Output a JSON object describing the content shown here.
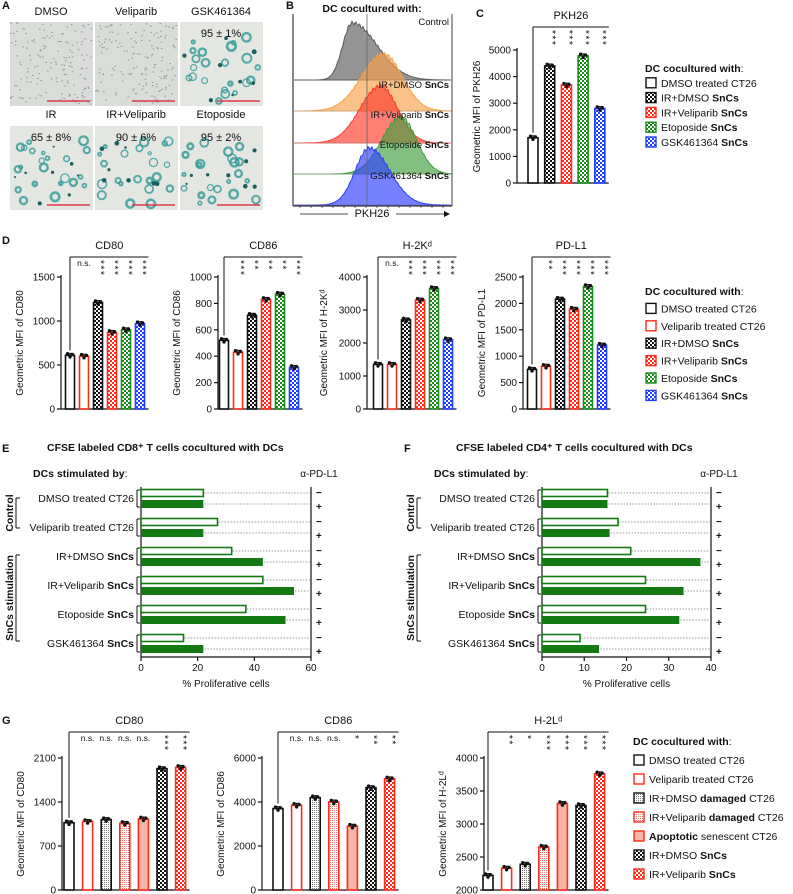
{
  "panel_labels": [
    "A",
    "B",
    "C",
    "D",
    "E",
    "F",
    "G"
  ],
  "colors": {
    "black": "#111111",
    "red": "#ff2a1a",
    "green": "#1c8a1c",
    "blue": "#1f3cff",
    "pink": "#f9b4a8",
    "grey": "#9a9a9a",
    "scale_bar": "#e0364a",
    "stain": "#2f9a96",
    "e_bar": "#137a13"
  },
  "panel_a": {
    "images": [
      {
        "label": "DMSO",
        "percent": "",
        "stained": false
      },
      {
        "label": "Veliparib",
        "percent": "",
        "stained": false
      },
      {
        "label": "GSK461364",
        "percent": "95 ± 1%",
        "stained": true
      },
      {
        "label": "IR",
        "percent": "65 ± 8%",
        "stained": true
      },
      {
        "label": "IR+Veliparib",
        "percent": "90 ± 6%",
        "stained": true
      },
      {
        "label": "Etoposide",
        "percent": "95 ± 2%",
        "stained": true
      }
    ]
  },
  "legend_c": {
    "title": [
      {
        "t": "DC cocultured with",
        "b": true
      },
      {
        "t": ":"
      }
    ],
    "items": [
      {
        "style": "open-black",
        "parts": [
          {
            "t": "DMSO treated CT26"
          }
        ]
      },
      {
        "style": "check-black",
        "parts": [
          {
            "t": "IR+DMSO "
          },
          {
            "t": "SnCs",
            "b": true
          }
        ]
      },
      {
        "style": "check-red",
        "parts": [
          {
            "t": "IR+Veliparib "
          },
          {
            "t": "SnCs",
            "b": true
          }
        ]
      },
      {
        "style": "check-green",
        "parts": [
          {
            "t": "Etoposide "
          },
          {
            "t": "SnCs",
            "b": true
          }
        ]
      },
      {
        "style": "check-blue",
        "parts": [
          {
            "t": "GSK461364 "
          },
          {
            "t": "SnCs",
            "b": true
          }
        ]
      }
    ]
  },
  "legend_d": {
    "title": [
      {
        "t": "DC cocultured with",
        "b": true
      },
      {
        "t": ":"
      }
    ],
    "items": [
      {
        "style": "open-black",
        "parts": [
          {
            "t": "DMSO treated CT26"
          }
        ]
      },
      {
        "style": "open-red",
        "parts": [
          {
            "t": "Veliparib treated CT26"
          }
        ]
      },
      {
        "style": "check-black",
        "parts": [
          {
            "t": "IR+DMSO "
          },
          {
            "t": "SnCs",
            "b": true
          }
        ]
      },
      {
        "style": "check-red",
        "parts": [
          {
            "t": "IR+Veliparib "
          },
          {
            "t": "SnCs",
            "b": true
          }
        ]
      },
      {
        "style": "check-green",
        "parts": [
          {
            "t": "Etoposide "
          },
          {
            "t": "SnCs",
            "b": true
          }
        ]
      },
      {
        "style": "check-blue",
        "parts": [
          {
            "t": "GSK461364 "
          },
          {
            "t": "SnCs",
            "b": true
          }
        ]
      }
    ]
  },
  "legend_g": {
    "title": [
      {
        "t": "DC cocultured with",
        "b": true
      },
      {
        "t": ":"
      }
    ],
    "items": [
      {
        "style": "open-black",
        "parts": [
          {
            "t": "DMSO treated CT26"
          }
        ]
      },
      {
        "style": "open-red",
        "parts": [
          {
            "t": "Veliparib treated CT26"
          }
        ]
      },
      {
        "style": "fine-black",
        "parts": [
          {
            "t": "IR+DMSO "
          },
          {
            "t": "damaged",
            "b": true
          },
          {
            "t": " CT26"
          }
        ]
      },
      {
        "style": "fine-red",
        "parts": [
          {
            "t": "IR+Veliparib "
          },
          {
            "t": "damaged",
            "b": true
          },
          {
            "t": " CT26"
          }
        ]
      },
      {
        "style": "solid-pink",
        "parts": [
          {
            "t": "Apoptotic",
            "b": true
          },
          {
            "t": " senescent CT26"
          }
        ]
      },
      {
        "style": "check-black",
        "parts": [
          {
            "t": "IR+DMSO "
          },
          {
            "t": "SnCs",
            "b": true
          }
        ]
      },
      {
        "style": "check-red",
        "parts": [
          {
            "t": "IR+Veliparib "
          },
          {
            "t": "SnCs",
            "b": true
          }
        ]
      }
    ]
  },
  "chart_data": [
    {
      "id": "B",
      "type": "area",
      "title": "DC cocultured with:",
      "xlabel": "PKH26",
      "series": [
        {
          "parts": [
            {
              "t": "Control"
            }
          ],
          "color": "#5a5a5a",
          "peak": 0.37,
          "sigma_left": 0.06,
          "sigma_right": 0.16
        },
        {
          "parts": [
            {
              "t": "IR+DMSO "
            },
            {
              "t": "SnCs",
              "b": true
            }
          ],
          "color": "#f7a048",
          "peak": 0.57,
          "sigma_left": 0.14,
          "sigma_right": 0.12
        },
        {
          "parts": [
            {
              "t": "IR+Veliparib "
            },
            {
              "t": "SnCs",
              "b": true
            }
          ],
          "color": "#ff3b2b",
          "peak": 0.55,
          "sigma_left": 0.13,
          "sigma_right": 0.11
        },
        {
          "parts": [
            {
              "t": "Etoposide "
            },
            {
              "t": "SnCs",
              "b": true
            }
          ],
          "color": "#3f9e3f",
          "peak": 0.68,
          "sigma_left": 0.12,
          "sigma_right": 0.1
        },
        {
          "parts": [
            {
              "t": "GSK461364 "
            },
            {
              "t": "SnCs",
              "b": true
            }
          ],
          "color": "#2e3cff",
          "peak": 0.48,
          "sigma_left": 0.09,
          "sigma_right": 0.13
        }
      ]
    },
    {
      "id": "C",
      "type": "bar",
      "title": "PKH26",
      "ylabel": "Geometric MFI of PKH26",
      "ylim": [
        0,
        5000
      ],
      "ticks": [
        0,
        1000,
        2000,
        3000,
        4000,
        5000
      ],
      "values": [
        1700,
        4400,
        3680,
        4780,
        2800
      ],
      "styles": [
        "open-black",
        "check-black",
        "check-red",
        "check-green",
        "check-blue"
      ],
      "sig": [
        "",
        "***",
        "***",
        "***",
        "***"
      ]
    },
    {
      "id": "D-CD80",
      "type": "bar",
      "title": "CD80",
      "ylabel": "Geometric MFI of CD80",
      "ylim": [
        0,
        1500
      ],
      "ticks": [
        0,
        500,
        1000,
        1500
      ],
      "values": [
        610,
        600,
        1210,
        870,
        900,
        970
      ],
      "styles": [
        "open-black",
        "open-red",
        "check-black",
        "check-red",
        "check-green",
        "check-blue"
      ],
      "sig": [
        "",
        "n.s.",
        "***",
        "***",
        "***",
        "***"
      ]
    },
    {
      "id": "D-CD86",
      "type": "bar",
      "title": "CD86",
      "ylabel": "Geometric MFI of CD86",
      "ylim": [
        0,
        1000
      ],
      "ticks": [
        0,
        200,
        400,
        600,
        800,
        1000
      ],
      "values": [
        520,
        430,
        710,
        830,
        870,
        315
      ],
      "styles": [
        "open-black",
        "open-red",
        "check-black",
        "check-red",
        "check-green",
        "check-blue"
      ],
      "sig": [
        "",
        "***",
        "**",
        "**",
        "**",
        "***"
      ]
    },
    {
      "id": "D-H2Kd",
      "type": "bar",
      "title": "H-2Kᵈ",
      "ylabel": "Geometric MFI of H-2Kᵈ",
      "ylim": [
        0,
        4000
      ],
      "ticks": [
        0,
        1000,
        2000,
        3000,
        4000
      ],
      "values": [
        1350,
        1350,
        2700,
        3300,
        3650,
        2100
      ],
      "styles": [
        "open-black",
        "open-red",
        "check-black",
        "check-red",
        "check-green",
        "check-blue"
      ],
      "sig": [
        "",
        "n.s.",
        "***",
        "***",
        "***",
        "***"
      ]
    },
    {
      "id": "D-PDL1",
      "type": "bar",
      "title": "PD-L1",
      "ylabel": "Geometric MFI of PD-L1",
      "ylim": [
        0,
        2500
      ],
      "ticks": [
        0,
        500,
        1000,
        1500,
        2000,
        2500
      ],
      "values": [
        750,
        810,
        2080,
        1890,
        2320,
        1210
      ],
      "styles": [
        "open-black",
        "open-red",
        "check-black",
        "check-red",
        "check-green",
        "check-blue"
      ],
      "sig": [
        "",
        "**",
        "***",
        "***",
        "***",
        "***"
      ]
    },
    {
      "id": "E",
      "type": "bar",
      "title": "CFSE labeled CD8⁺ T cells cocultured with DCs",
      "header": [
        {
          "t": "DCs stimulated by",
          "b": true
        },
        {
          "t": ":"
        }
      ],
      "antibody": "α-PD-L1",
      "signs": [
        "−",
        "+"
      ],
      "xlabel": "% Proliferative cells",
      "xlim": [
        0,
        60
      ],
      "ticks": [
        0,
        20,
        40,
        60
      ],
      "groups": [
        "Control",
        "SnCs stimulation"
      ],
      "rows": [
        {
          "parts": [
            {
              "t": "DMSO treated CT26"
            }
          ],
          "minus": 22,
          "plus": 22
        },
        {
          "parts": [
            {
              "t": "Veliparib treated CT26"
            }
          ],
          "minus": 27,
          "plus": 22
        },
        {
          "parts": [
            {
              "t": "IR+DMSO "
            },
            {
              "t": "SnCs",
              "b": true
            }
          ],
          "minus": 32,
          "plus": 43
        },
        {
          "parts": [
            {
              "t": "IR+Veliparib "
            },
            {
              "t": "SnCs",
              "b": true
            }
          ],
          "minus": 43,
          "plus": 54
        },
        {
          "parts": [
            {
              "t": "Etoposide "
            },
            {
              "t": "SnCs",
              "b": true
            }
          ],
          "minus": 37,
          "plus": 51
        },
        {
          "parts": [
            {
              "t": "GSK461364 "
            },
            {
              "t": "SnCs",
              "b": true
            }
          ],
          "minus": 15,
          "plus": 22
        }
      ]
    },
    {
      "id": "F",
      "type": "bar",
      "title": "CFSE labeled CD4⁺ T cells cocultured with DCs",
      "header": [
        {
          "t": "DCs stimulated by",
          "b": true
        },
        {
          "t": ":"
        }
      ],
      "antibody": "α-PD-L1",
      "signs": [
        "−",
        "+"
      ],
      "xlabel": "% Proliferative cells",
      "xlim": [
        0,
        40
      ],
      "ticks": [
        0,
        10,
        20,
        30,
        40
      ],
      "groups": [
        "Control",
        "SnCs stimulation"
      ],
      "rows": [
        {
          "parts": [
            {
              "t": "DMSO treated CT26"
            }
          ],
          "minus": 15.5,
          "plus": 15.5
        },
        {
          "parts": [
            {
              "t": "Veliparib treated CT26"
            }
          ],
          "minus": 18,
          "plus": 16
        },
        {
          "parts": [
            {
              "t": "IR+DMSO "
            },
            {
              "t": "SnCs",
              "b": true
            }
          ],
          "minus": 21,
          "plus": 37.5
        },
        {
          "parts": [
            {
              "t": "IR+Veliparib "
            },
            {
              "t": "SnCs",
              "b": true
            }
          ],
          "minus": 24.5,
          "plus": 33.5
        },
        {
          "parts": [
            {
              "t": "Etoposide "
            },
            {
              "t": "SnCs",
              "b": true
            }
          ],
          "minus": 24.5,
          "plus": 32.5
        },
        {
          "parts": [
            {
              "t": "GSK461364 "
            },
            {
              "t": "SnCs",
              "b": true
            }
          ],
          "minus": 9,
          "plus": 13.5
        }
      ]
    },
    {
      "id": "G-CD80",
      "type": "bar",
      "title": "CD80",
      "ylabel": "Geometric MFI of CD80",
      "ylim": [
        0,
        2100
      ],
      "ticks": [
        0,
        700,
        1400,
        2100
      ],
      "values": [
        1070,
        1090,
        1120,
        1060,
        1130,
        1930,
        1950
      ],
      "styles": [
        "open-black",
        "open-red",
        "fine-black",
        "fine-red",
        "solid-pink",
        "check-black",
        "check-red"
      ],
      "sig": [
        "",
        "n.s.",
        "n.s.",
        "n.s.",
        "n.s.",
        "***",
        "***"
      ]
    },
    {
      "id": "G-CD86",
      "type": "bar",
      "title": "CD86",
      "ylabel": "Geometric MFI of CD86",
      "ylim": [
        0,
        6000
      ],
      "ticks": [
        0,
        2000,
        4000,
        6000
      ],
      "values": [
        3700,
        3850,
        4200,
        4000,
        2900,
        4650,
        5050
      ],
      "styles": [
        "open-black",
        "open-red",
        "fine-black",
        "fine-red",
        "solid-pink",
        "check-black",
        "check-red"
      ],
      "sig": [
        "",
        "n.s.",
        "n.s.",
        "n.s.",
        "*",
        "**",
        "**"
      ]
    },
    {
      "id": "G-H2Ld",
      "type": "bar",
      "title": "H-2Lᵈ",
      "ylabel": "Geometric MFI of H-2Lᵈ",
      "ylim": [
        2000,
        4000
      ],
      "ticks": [
        2000,
        2500,
        3000,
        3500,
        4000
      ],
      "values": [
        2220,
        2330,
        2390,
        2650,
        3310,
        3280,
        3760
      ],
      "styles": [
        "open-black",
        "open-red",
        "fine-black",
        "fine-red",
        "solid-pink",
        "check-black",
        "check-red"
      ],
      "sig": [
        "",
        "**",
        "*",
        "***",
        "***",
        "***",
        "***"
      ]
    }
  ]
}
